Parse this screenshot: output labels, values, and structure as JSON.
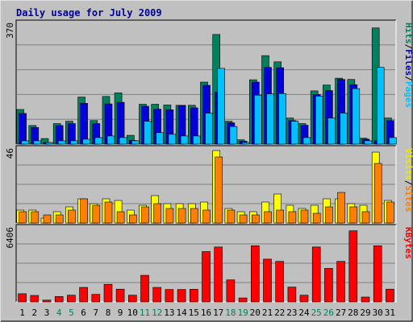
{
  "chart_data": {
    "type": "bar",
    "title": "Daily usage for July 2009",
    "categories": [
      "1",
      "2",
      "3",
      "4",
      "5",
      "6",
      "7",
      "8",
      "9",
      "10",
      "11",
      "12",
      "13",
      "14",
      "15",
      "16",
      "17",
      "18",
      "19",
      "20",
      "21",
      "22",
      "23",
      "24",
      "25",
      "26",
      "27",
      "28",
      "29",
      "30",
      "31"
    ],
    "weekend_days": [
      "4",
      "5",
      "11",
      "12",
      "18",
      "19",
      "25",
      "26"
    ],
    "panels": [
      {
        "id": "hits-panel",
        "scale_label": "370",
        "ymax": 370,
        "axis_labels": [
          {
            "text": "Pages",
            "color": "#00c0ff"
          },
          {
            "text": "Files",
            "color": "#0000b0"
          },
          {
            "text": "Hits",
            "color": "#00805c"
          }
        ],
        "series": [
          {
            "name": "Hits",
            "color": "#00805c",
            "values": [
              106,
              57,
              17,
              63,
              70,
              144,
              72,
              146,
              157,
              27,
              122,
              122,
              120,
              119,
              119,
              190,
              336,
              70,
              13,
              197,
              271,
              252,
              80,
              63,
              163,
              181,
              202,
              198,
              18,
              356,
              80
            ]
          },
          {
            "name": "Files",
            "color": "#0000d8",
            "values": [
              94,
              51,
              5,
              57,
              63,
              125,
              63,
              123,
              128,
              11,
              116,
              107,
              105,
              119,
              111,
              180,
              159,
              65,
              9,
              190,
              235,
              234,
              72,
              58,
              152,
              164,
              198,
              182,
              15,
              10,
              72
            ]
          },
          {
            "name": "Pages",
            "color": "#00c0ff",
            "values": [
              10,
              10,
              5,
              10,
              10,
              15,
              20,
              25,
              20,
              10,
              70,
              35,
              30,
              25,
              25,
              95,
              232,
              54,
              5,
              150,
              154,
              155,
              70,
              20,
              147,
              80,
              95,
              170,
              10,
              235,
              20
            ]
          }
        ]
      },
      {
        "id": "sites-panel",
        "scale_label": "46",
        "ymax": 46,
        "axis_labels": [
          {
            "text": "Sites",
            "color": "#ff8000"
          },
          {
            "text": "Visits",
            "color": "#e8e800"
          }
        ],
        "series": [
          {
            "name": "Visits",
            "color": "#ffff00",
            "values": [
              8,
              8,
              3,
              7,
              10,
              15,
              12,
              15,
              14,
              8,
              11,
              17,
              12,
              12,
              12,
              13,
              45,
              9,
              7,
              7,
              13,
              18,
              11,
              9,
              11,
              15,
              15,
              12,
              11,
              44,
              14
            ]
          },
          {
            "name": "Sites",
            "color": "#ff8000",
            "values": [
              7,
              7,
              5,
              5,
              8,
              15,
              11,
              13,
              7,
              5,
              10,
              12,
              9,
              9,
              9,
              8,
              41,
              8,
              5,
              5,
              7,
              8,
              7,
              8,
              6,
              10,
              19,
              10,
              7,
              37,
              13
            ]
          }
        ]
      },
      {
        "id": "kbytes-panel",
        "scale_label": "6406",
        "ymax": 6406,
        "axis_labels": [
          {
            "text": "KBytes",
            "color": "#ff0000"
          }
        ],
        "series": [
          {
            "name": "KBytes",
            "color": "#ff0000",
            "values": [
              700,
              560,
              150,
              470,
              580,
              1250,
              650,
              1520,
              1100,
              580,
              2300,
              1250,
              1070,
              1070,
              1090,
              4350,
              4750,
              1900,
              340,
              4850,
              3700,
              3500,
              1280,
              580,
              4750,
              2900,
              3500,
              6150,
              420,
              4850,
              1100
            ]
          }
        ]
      }
    ]
  }
}
